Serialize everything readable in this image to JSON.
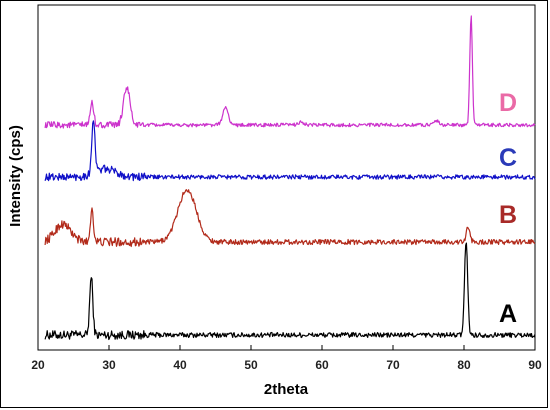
{
  "chart_data": {
    "type": "line",
    "title": "",
    "xlabel": "2theta",
    "ylabel": "Intensity (cps)",
    "xlim": [
      20,
      90
    ],
    "x_ticks": [
      20,
      30,
      40,
      50,
      60,
      70,
      80,
      90
    ],
    "x_tick_labels": [
      "20",
      "30",
      "40",
      "50",
      "60",
      "70",
      "80",
      "90"
    ],
    "y_ticks_shown": false,
    "grid": false,
    "legend": "none",
    "series": [
      {
        "name": "A",
        "color": "#000000",
        "baseline": 7,
        "noise": 2.5,
        "peaks": [
          {
            "x": 27.5,
            "height": 58,
            "width": 0.22
          },
          {
            "x": 80.3,
            "height": 95,
            "width": 0.22
          }
        ]
      },
      {
        "name": "B",
        "color": "#b22a1a",
        "baseline": 100,
        "noise": 2.5,
        "peaks": [
          {
            "x": 23.5,
            "height": 18,
            "width": 1.1
          },
          {
            "x": 27.6,
            "height": 33,
            "width": 0.22
          },
          {
            "x": 41.0,
            "height": 52,
            "width": 1.3
          },
          {
            "x": 80.6,
            "height": 15,
            "width": 0.25
          }
        ]
      },
      {
        "name": "C",
        "color": "#1010c8",
        "baseline": 165,
        "noise": 2.2,
        "peaks": [
          {
            "x": 27.8,
            "height": 55,
            "width": 0.22
          },
          {
            "x": 29.5,
            "height": 8,
            "width": 1.5
          }
        ]
      },
      {
        "name": "D",
        "color": "#cc33cc",
        "baseline": 217,
        "noise": 1.8,
        "peaks": [
          {
            "x": 27.6,
            "height": 22,
            "width": 0.25
          },
          {
            "x": 32.5,
            "height": 38,
            "width": 0.45
          },
          {
            "x": 46.4,
            "height": 17,
            "width": 0.4
          },
          {
            "x": 57.0,
            "height": 3,
            "width": 0.4
          },
          {
            "x": 76.0,
            "height": 5,
            "width": 0.4
          },
          {
            "x": 81.0,
            "height": 110,
            "width": 0.18
          }
        ]
      }
    ],
    "labels": {
      "A": {
        "text": "A",
        "color": "#000000"
      },
      "B": {
        "text": "B",
        "color": "#a82a28"
      },
      "C": {
        "text": "C",
        "color": "#2a3ab8"
      },
      "D": {
        "text": "D",
        "color": "#ea6aa6"
      }
    }
  }
}
